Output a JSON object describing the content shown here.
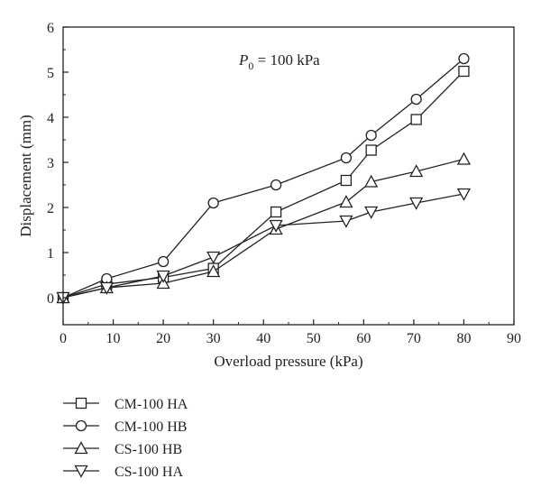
{
  "chart_data": {
    "type": "line",
    "xlabel": "Overload pressure (kPa)",
    "ylabel": "Displacement (mm)",
    "xlim": [
      0,
      90
    ],
    "ylim": [
      -0.6,
      6
    ],
    "xticks": [
      0,
      10,
      20,
      30,
      40,
      50,
      60,
      70,
      80,
      90
    ],
    "yticks": [
      0,
      1,
      2,
      3,
      4,
      5,
      6
    ],
    "grid": false,
    "legend_position": "bottom-left outside",
    "annotation": {
      "symbol": "P",
      "subscript": "0",
      "text": " = 100 kPa"
    },
    "series": [
      {
        "name": "CM-100 HA",
        "marker": "square",
        "points": [
          [
            0,
            0
          ],
          [
            8.7,
            0.3
          ],
          [
            20,
            0.45
          ],
          [
            30,
            0.65
          ],
          [
            42.5,
            1.9
          ],
          [
            56.5,
            2.6
          ],
          [
            61.5,
            3.27
          ],
          [
            70.5,
            3.95
          ],
          [
            80,
            5.02
          ]
        ]
      },
      {
        "name": "CM-100 HB",
        "marker": "circle",
        "points": [
          [
            0,
            0
          ],
          [
            8.7,
            0.42
          ],
          [
            20,
            0.8
          ],
          [
            30,
            2.1
          ],
          [
            42.5,
            2.5
          ],
          [
            56.5,
            3.1
          ],
          [
            61.5,
            3.6
          ],
          [
            70.5,
            4.4
          ],
          [
            80,
            5.3
          ]
        ]
      },
      {
        "name": "CS-100 HB",
        "marker": "triangle-up",
        "points": [
          [
            0,
            0
          ],
          [
            8.7,
            0.22
          ],
          [
            20,
            0.32
          ],
          [
            30,
            0.58
          ],
          [
            42.5,
            1.52
          ],
          [
            56.5,
            2.12
          ],
          [
            61.5,
            2.57
          ],
          [
            70.5,
            2.8
          ],
          [
            80,
            3.07
          ]
        ]
      },
      {
        "name": "CS-100 HA",
        "marker": "triangle-down",
        "points": [
          [
            0,
            0
          ],
          [
            8.7,
            0.22
          ],
          [
            20,
            0.48
          ],
          [
            30,
            0.9
          ],
          [
            42.5,
            1.6
          ],
          [
            56.5,
            1.7
          ],
          [
            61.5,
            1.9
          ],
          [
            70.5,
            2.1
          ],
          [
            80,
            2.3
          ]
        ]
      }
    ]
  }
}
